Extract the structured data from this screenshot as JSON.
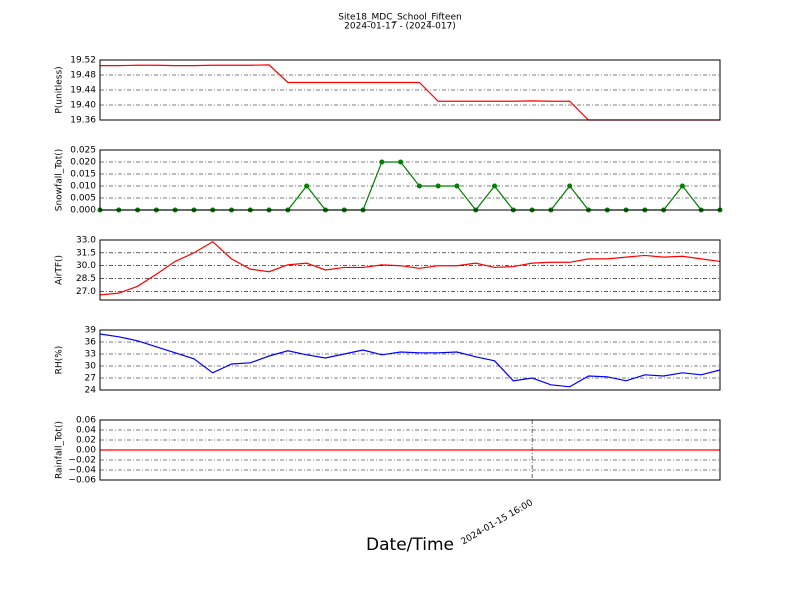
{
  "chart_data": [
    {
      "type": "line",
      "title": "Site18_MDC_School_Fifteen",
      "subtitle": "2024-01-17 - (2024-017)",
      "ylabel": "P(unitless)",
      "color": "#ff0000",
      "markers": false,
      "grid": true,
      "categories": [
        null,
        null,
        null,
        null,
        null,
        null,
        null,
        null,
        null,
        null,
        null,
        null,
        null,
        null,
        null,
        null,
        null,
        null,
        null,
        null,
        null,
        null,
        null,
        null,
        null,
        null,
        null,
        null,
        null,
        null,
        null,
        null,
        null,
        null
      ],
      "values": [
        19.505,
        19.505,
        19.506,
        19.506,
        19.505,
        19.505,
        19.506,
        19.506,
        19.506,
        19.507,
        19.46,
        19.46,
        19.46,
        19.46,
        19.46,
        19.46,
        19.46,
        19.46,
        19.41,
        19.41,
        19.41,
        19.41,
        19.41,
        19.411,
        19.41,
        19.41,
        19.36,
        19.36,
        19.36,
        19.36,
        19.36,
        19.36,
        19.36,
        19.36
      ],
      "ylim": [
        19.36,
        19.52
      ],
      "yticks": [
        19.36,
        {
          "value": 19.4,
          "label": "19.40"
        },
        19.44,
        19.48,
        19.52
      ]
    },
    {
      "type": "line",
      "ylabel": "Snowfall_Tot()",
      "color": "#007f00",
      "markers": true,
      "grid": true,
      "categories": [
        null,
        null,
        null,
        null,
        null,
        null,
        null,
        null,
        null,
        null,
        null,
        null,
        null,
        null,
        null,
        null,
        null,
        null,
        null,
        null,
        null,
        null,
        null,
        null,
        null,
        null,
        null,
        null,
        null,
        null,
        null,
        null,
        null,
        null
      ],
      "values": [
        0,
        0,
        0,
        0,
        0,
        0,
        0,
        0,
        0,
        0,
        0,
        0.01,
        0,
        0,
        0,
        0.02,
        0.02,
        0.01,
        0.01,
        0.01,
        0,
        0.01,
        0,
        0,
        0,
        0.01,
        0,
        0,
        0,
        0,
        0,
        0.01,
        0,
        0
      ],
      "ylim": [
        0,
        0.025
      ],
      "yticks": [
        {
          "value": 0,
          "label": "0.000"
        },
        0.005,
        {
          "value": 0.01,
          "label": "0.010"
        },
        0.015,
        {
          "value": 0.02,
          "label": "0.020"
        },
        0.025
      ]
    },
    {
      "type": "line",
      "ylabel": "AirTF()",
      "color": "#ff0000",
      "markers": false,
      "grid": true,
      "categories": [
        null,
        null,
        null,
        null,
        null,
        null,
        null,
        null,
        null,
        null,
        null,
        null,
        null,
        null,
        null,
        null,
        null,
        null,
        null,
        null,
        null,
        null,
        null,
        null,
        null,
        null,
        null,
        null,
        null,
        null,
        null,
        null,
        null,
        null
      ],
      "values": [
        26.6,
        26.8,
        27.6,
        29.0,
        30.5,
        31.5,
        32.8,
        30.8,
        29.6,
        29.3,
        30.1,
        30.3,
        29.5,
        29.8,
        29.8,
        30.1,
        30.0,
        29.7,
        30.0,
        30.0,
        30.3,
        29.8,
        29.9,
        30.3,
        30.4,
        30.4,
        30.8,
        30.8,
        31.0,
        31.2,
        31.0,
        31.1,
        30.8,
        30.5
      ],
      "ylim": [
        26,
        33
      ],
      "yticks": [
        {
          "value": 27,
          "label": "27.0"
        },
        28.5,
        {
          "value": 30,
          "label": "30.0"
        },
        31.5,
        {
          "value": 33,
          "label": "33.0"
        }
      ]
    },
    {
      "type": "line",
      "ylabel": "RH(%)",
      "color": "#0000ff",
      "markers": false,
      "grid": true,
      "categories": [
        null,
        null,
        null,
        null,
        null,
        null,
        null,
        null,
        null,
        null,
        null,
        null,
        null,
        null,
        null,
        null,
        null,
        null,
        null,
        null,
        null,
        null,
        null,
        null,
        null,
        null,
        null,
        null,
        null,
        null,
        null,
        null,
        null,
        null
      ],
      "values": [
        38,
        37.3,
        36.3,
        34.8,
        33.3,
        31.8,
        28.3,
        30.5,
        30.8,
        32.5,
        33.8,
        32.8,
        32.0,
        33.0,
        34.0,
        32.8,
        33.5,
        33.3,
        33.3,
        33.5,
        32.3,
        31.3,
        26.3,
        27.0,
        25.3,
        24.8,
        27.5,
        27.3,
        26.3,
        27.8,
        27.5,
        28.3,
        27.8,
        29.0
      ],
      "ylim": [
        24,
        39
      ],
      "yticks": [
        24,
        27,
        30,
        33,
        36,
        39
      ]
    },
    {
      "type": "line",
      "ylabel": "Rainfall_Tot()",
      "xlabel": "Date/Time",
      "color": "#ff0000",
      "markers": false,
      "grid": true,
      "categories": [
        null,
        null,
        null,
        null,
        null,
        null,
        null,
        null,
        null,
        null,
        null,
        null,
        null,
        null,
        null,
        null,
        null,
        null,
        null,
        null,
        null,
        null,
        null,
        "2024-01-15 16:00",
        null,
        null,
        null,
        null,
        null,
        null,
        null,
        null,
        null,
        null
      ],
      "values": [
        0,
        0,
        0,
        0,
        0,
        0,
        0,
        0,
        0,
        0,
        0,
        0,
        0,
        0,
        0,
        0,
        0,
        0,
        0,
        0,
        0,
        0,
        0,
        0,
        0,
        0,
        0,
        0,
        0,
        0,
        0,
        0,
        0,
        0
      ],
      "ylim": [
        -0.06,
        0.06
      ],
      "yticks": [
        {
          "value": -0.06,
          "label": "−0.06"
        },
        {
          "value": -0.04,
          "label": "−0.04"
        },
        {
          "value": -0.02,
          "label": "−0.02"
        },
        {
          "value": 0,
          "label": "0.00"
        },
        0.02,
        0.04,
        0.06
      ]
    }
  ]
}
